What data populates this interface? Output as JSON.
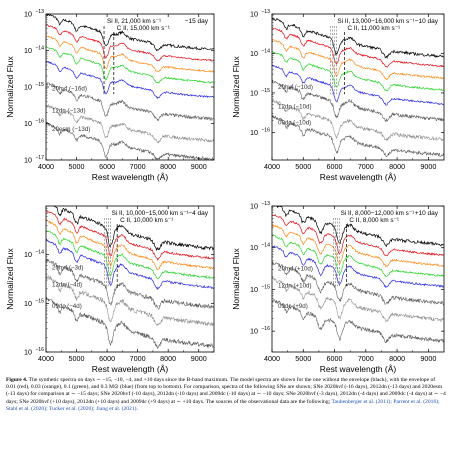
{
  "figure": {
    "xlabel": "Rest wavelength (Å)",
    "ylabel": "Normalized Flux"
  },
  "caption": {
    "label": "Figure 4.",
    "text": "The synthetic spectra on days ∼ −15, −10, −4, and +10 days since the B-band maximum. The model spectra are shown for the one without the envelope (black), with the envelope of 0.01 (red), 0.03 (orange), 0.1 (green), and 0.3 M⊙ (blue) (from top to bottom). For comparison, spectra of the following SNe are shown; SNe 2020hvf (-16 days), 2012dn (-13 days) and 2020esm (-13 days) for comparison at ∼ −15 days; SNe 2020hvf (-10 days), 2012dn (-10 days) and 2009dc (-10 days) at ∼ −10 days; SNe 2020hvf (-3 days), 2012dn (-4 days) and 2009dc (-4 days) at ∼ −4 days; SNe 2020hvf (+10 days), 2012dn (+10 days) and 2009dc (+9 days) at ∼ +10 days. The sources of the observational data are the following;",
    "refs": "Taubenberger et al. (2011); Parrent et al. (2016); Stahl et al. (2020); Tucker et al. (2020); Jiang et al. (2021)."
  },
  "colors": {
    "model_none": "#000000",
    "env_0_01": "#e8101a",
    "env_0_03": "#ff8a1a",
    "env_0_1": "#2bd62b",
    "env_0_3": "#2a2ae6",
    "obs": "#555555",
    "obs_light": "#8c8c8c",
    "annotation": "#000000"
  },
  "chart_data": [
    {
      "type": "line",
      "panel": "top-left",
      "day_label": "−15 day",
      "xlim": [
        4000,
        9500
      ],
      "xticks": [
        "4000",
        "5000",
        "6000",
        "7000",
        "8000",
        "9000"
      ],
      "ylim_log10": [
        -17,
        -13
      ],
      "yticks": [
        {
          "base": "10",
          "exp": "−13",
          "log": -13
        },
        {
          "base": "10",
          "exp": "−14",
          "log": -14
        },
        {
          "base": "10",
          "exp": "−15",
          "log": -15
        },
        {
          "base": "10",
          "exp": "−16",
          "log": -16
        },
        {
          "base": "10",
          "exp": "−17",
          "log": -17
        }
      ],
      "lines": [
        {
          "label": "Si II, 21,000 km s⁻¹",
          "x": 5900,
          "style": "dashed"
        },
        {
          "label": "C II, 15,000 km s⁻¹",
          "x": 6220,
          "style": "dashed"
        }
      ],
      "series": [
        {
          "kind": "model",
          "color": "model_none",
          "log_level": -13.55
        },
        {
          "kind": "model",
          "color": "env_0_01",
          "log_level": -13.85
        },
        {
          "kind": "model",
          "color": "env_0_03",
          "log_level": -14.15
        },
        {
          "kind": "model",
          "color": "env_0_1",
          "log_level": -14.45
        },
        {
          "kind": "model",
          "color": "env_0_3",
          "log_level": -14.85
        },
        {
          "kind": "obs",
          "name": "20hvf (−16d)",
          "color": "obs",
          "log_level": -15.45
        },
        {
          "kind": "obs",
          "name": "12dn (−13d)",
          "color": "obs_light",
          "log_level": -16.05
        },
        {
          "kind": "obs",
          "name": "20esm (−13d)",
          "color": "obs",
          "log_level": -16.55
        }
      ]
    },
    {
      "type": "line",
      "panel": "top-right",
      "day_label": "−10 day",
      "xlim": [
        4000,
        9500
      ],
      "xticks": [
        "4000",
        "5000",
        "6000",
        "7000",
        "8000",
        "9000"
      ],
      "ylim_log10": [
        -16.7,
        -13
      ],
      "yticks": [
        {
          "base": "10",
          "exp": "−13",
          "log": -13
        },
        {
          "base": "10",
          "exp": "−14",
          "log": -14
        },
        {
          "base": "10",
          "exp": "−15",
          "log": -15
        },
        {
          "base": "10",
          "exp": "−16",
          "log": -16
        }
      ],
      "lines": [
        {
          "label": "Si II, 13,000−16,000 km s⁻¹",
          "x": 6000,
          "style": "band"
        },
        {
          "label": "C II, 11,000 km s⁻¹",
          "x": 6320,
          "style": "dashed"
        }
      ],
      "series": [
        {
          "kind": "model",
          "color": "model_none",
          "log_level": -13.65
        },
        {
          "kind": "model",
          "color": "env_0_01",
          "log_level": -13.9
        },
        {
          "kind": "model",
          "color": "env_0_03",
          "log_level": -14.2
        },
        {
          "kind": "model",
          "color": "env_0_1",
          "log_level": -14.5
        },
        {
          "kind": "model",
          "color": "env_0_3",
          "log_level": -14.85
        },
        {
          "kind": "obs",
          "name": "20hvf (−10d)",
          "color": "obs",
          "log_level": -15.25
        },
        {
          "kind": "obs",
          "name": "12dn (−10d)",
          "color": "obs_light",
          "log_level": -15.75
        },
        {
          "kind": "obs",
          "name": "09dc (−10d)",
          "color": "obs",
          "log_level": -16.15
        }
      ]
    },
    {
      "type": "line",
      "panel": "bottom-left",
      "day_label": "−4 day",
      "xlim": [
        4000,
        9500
      ],
      "xticks": [
        "4000",
        "5000",
        "6000",
        "7000",
        "8000",
        "9000"
      ],
      "ylim_log10": [
        -16,
        -13
      ],
      "yticks": [
        {
          "base": "10",
          "exp": "−14",
          "log": -14
        },
        {
          "base": "10",
          "exp": "−15",
          "log": -15
        },
        {
          "base": "10",
          "exp": "−16",
          "log": -16
        }
      ],
      "lines": [
        {
          "label": "Si II, 10,000−15,000 km s⁻¹",
          "x": 6050,
          "style": "band"
        },
        {
          "label": "C II, 10,000 km s⁻¹",
          "x": 6330,
          "style": "dashed"
        }
      ],
      "series": [
        {
          "kind": "model",
          "color": "model_none",
          "log_level": -13.45
        },
        {
          "kind": "model",
          "color": "env_0_01",
          "log_level": -13.65
        },
        {
          "kind": "model",
          "color": "env_0_03",
          "log_level": -13.85
        },
        {
          "kind": "model",
          "color": "env_0_1",
          "log_level": -14.05
        },
        {
          "kind": "model",
          "color": "env_0_3",
          "log_level": -14.25
        },
        {
          "kind": "obs",
          "name": "20hvf (−3d)",
          "color": "obs",
          "log_level": -14.65
        },
        {
          "kind": "obs",
          "name": "12dn (−4d)",
          "color": "obs_light",
          "log_level": -15.0
        },
        {
          "kind": "obs",
          "name": "09dc (−4d)",
          "color": "obs",
          "log_level": -15.45
        }
      ]
    },
    {
      "type": "line",
      "panel": "bottom-right",
      "day_label": "+10 day",
      "xlim": [
        4000,
        9500
      ],
      "xticks": [
        "4000",
        "5000",
        "6000",
        "7000",
        "8000",
        "9000"
      ],
      "ylim_log10": [
        -16.5,
        -13
      ],
      "yticks": [
        {
          "base": "10",
          "exp": "−13",
          "log": -13
        },
        {
          "base": "10",
          "exp": "−14",
          "log": -14
        },
        {
          "base": "10",
          "exp": "−15",
          "log": -15
        },
        {
          "base": "10",
          "exp": "−16",
          "log": -16
        }
      ],
      "lines": [
        {
          "label": "Si II, 8,000−12,000 km s⁻¹",
          "x": 6100,
          "style": "band"
        },
        {
          "label": "C II, 8,000 km s⁻¹",
          "x": 6380,
          "style": "dashed"
        }
      ],
      "series": [
        {
          "kind": "model",
          "color": "model_none",
          "log_level": -13.5
        },
        {
          "kind": "model",
          "color": "env_0_01",
          "log_level": -13.75
        },
        {
          "kind": "model",
          "color": "env_0_03",
          "log_level": -14.0
        },
        {
          "kind": "model",
          "color": "env_0_1",
          "log_level": -14.25
        },
        {
          "kind": "model",
          "color": "env_0_3",
          "log_level": -14.5
        },
        {
          "kind": "obs",
          "name": "20hvf (+10d)",
          "color": "obs",
          "log_level": -14.9
        },
        {
          "kind": "obs",
          "name": "12dn (+10d)",
          "color": "obs_light",
          "log_level": -15.3
        },
        {
          "kind": "obs",
          "name": "09dc (+9d)",
          "color": "obs",
          "log_level": -15.8
        }
      ]
    }
  ]
}
